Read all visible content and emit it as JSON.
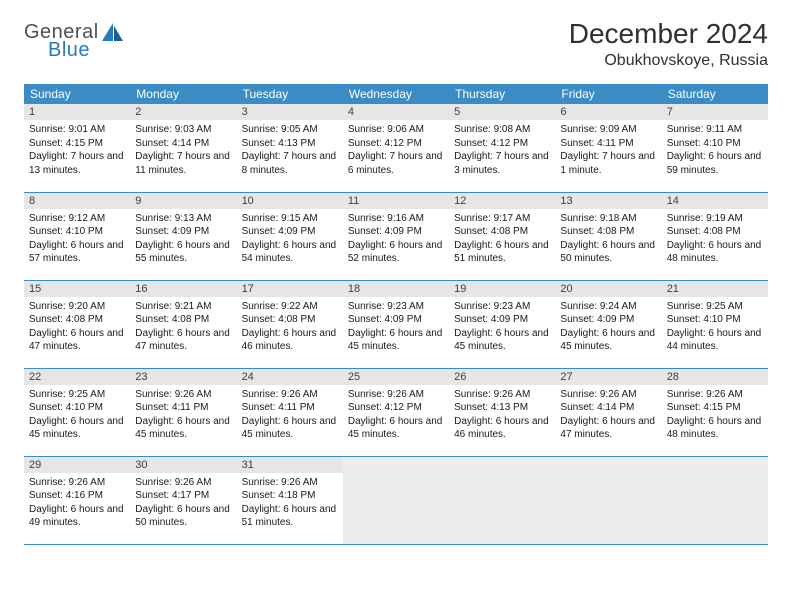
{
  "brand": {
    "word1": "General",
    "word2": "Blue"
  },
  "title": "December 2024",
  "location": "Obukhovskoye, Russia",
  "colors": {
    "header_blue": "#3b8bc4",
    "row_sep": "#3b8bc4",
    "daynum_bg": "#e6e6e6",
    "empty_bg": "#ececec",
    "logo_blue": "#2a7ab8",
    "logo_gray": "#505050"
  },
  "day_headers": [
    "Sunday",
    "Monday",
    "Tuesday",
    "Wednesday",
    "Thursday",
    "Friday",
    "Saturday"
  ],
  "weeks": [
    [
      {
        "n": "1",
        "sunrise": "Sunrise: 9:01 AM",
        "sunset": "Sunset: 4:15 PM",
        "daylight": "Daylight: 7 hours and 13 minutes."
      },
      {
        "n": "2",
        "sunrise": "Sunrise: 9:03 AM",
        "sunset": "Sunset: 4:14 PM",
        "daylight": "Daylight: 7 hours and 11 minutes."
      },
      {
        "n": "3",
        "sunrise": "Sunrise: 9:05 AM",
        "sunset": "Sunset: 4:13 PM",
        "daylight": "Daylight: 7 hours and 8 minutes."
      },
      {
        "n": "4",
        "sunrise": "Sunrise: 9:06 AM",
        "sunset": "Sunset: 4:12 PM",
        "daylight": "Daylight: 7 hours and 6 minutes."
      },
      {
        "n": "5",
        "sunrise": "Sunrise: 9:08 AM",
        "sunset": "Sunset: 4:12 PM",
        "daylight": "Daylight: 7 hours and 3 minutes."
      },
      {
        "n": "6",
        "sunrise": "Sunrise: 9:09 AM",
        "sunset": "Sunset: 4:11 PM",
        "daylight": "Daylight: 7 hours and 1 minute."
      },
      {
        "n": "7",
        "sunrise": "Sunrise: 9:11 AM",
        "sunset": "Sunset: 4:10 PM",
        "daylight": "Daylight: 6 hours and 59 minutes."
      }
    ],
    [
      {
        "n": "8",
        "sunrise": "Sunrise: 9:12 AM",
        "sunset": "Sunset: 4:10 PM",
        "daylight": "Daylight: 6 hours and 57 minutes."
      },
      {
        "n": "9",
        "sunrise": "Sunrise: 9:13 AM",
        "sunset": "Sunset: 4:09 PM",
        "daylight": "Daylight: 6 hours and 55 minutes."
      },
      {
        "n": "10",
        "sunrise": "Sunrise: 9:15 AM",
        "sunset": "Sunset: 4:09 PM",
        "daylight": "Daylight: 6 hours and 54 minutes."
      },
      {
        "n": "11",
        "sunrise": "Sunrise: 9:16 AM",
        "sunset": "Sunset: 4:09 PM",
        "daylight": "Daylight: 6 hours and 52 minutes."
      },
      {
        "n": "12",
        "sunrise": "Sunrise: 9:17 AM",
        "sunset": "Sunset: 4:08 PM",
        "daylight": "Daylight: 6 hours and 51 minutes."
      },
      {
        "n": "13",
        "sunrise": "Sunrise: 9:18 AM",
        "sunset": "Sunset: 4:08 PM",
        "daylight": "Daylight: 6 hours and 50 minutes."
      },
      {
        "n": "14",
        "sunrise": "Sunrise: 9:19 AM",
        "sunset": "Sunset: 4:08 PM",
        "daylight": "Daylight: 6 hours and 48 minutes."
      }
    ],
    [
      {
        "n": "15",
        "sunrise": "Sunrise: 9:20 AM",
        "sunset": "Sunset: 4:08 PM",
        "daylight": "Daylight: 6 hours and 47 minutes."
      },
      {
        "n": "16",
        "sunrise": "Sunrise: 9:21 AM",
        "sunset": "Sunset: 4:08 PM",
        "daylight": "Daylight: 6 hours and 47 minutes."
      },
      {
        "n": "17",
        "sunrise": "Sunrise: 9:22 AM",
        "sunset": "Sunset: 4:08 PM",
        "daylight": "Daylight: 6 hours and 46 minutes."
      },
      {
        "n": "18",
        "sunrise": "Sunrise: 9:23 AM",
        "sunset": "Sunset: 4:09 PM",
        "daylight": "Daylight: 6 hours and 45 minutes."
      },
      {
        "n": "19",
        "sunrise": "Sunrise: 9:23 AM",
        "sunset": "Sunset: 4:09 PM",
        "daylight": "Daylight: 6 hours and 45 minutes."
      },
      {
        "n": "20",
        "sunrise": "Sunrise: 9:24 AM",
        "sunset": "Sunset: 4:09 PM",
        "daylight": "Daylight: 6 hours and 45 minutes."
      },
      {
        "n": "21",
        "sunrise": "Sunrise: 9:25 AM",
        "sunset": "Sunset: 4:10 PM",
        "daylight": "Daylight: 6 hours and 44 minutes."
      }
    ],
    [
      {
        "n": "22",
        "sunrise": "Sunrise: 9:25 AM",
        "sunset": "Sunset: 4:10 PM",
        "daylight": "Daylight: 6 hours and 45 minutes."
      },
      {
        "n": "23",
        "sunrise": "Sunrise: 9:26 AM",
        "sunset": "Sunset: 4:11 PM",
        "daylight": "Daylight: 6 hours and 45 minutes."
      },
      {
        "n": "24",
        "sunrise": "Sunrise: 9:26 AM",
        "sunset": "Sunset: 4:11 PM",
        "daylight": "Daylight: 6 hours and 45 minutes."
      },
      {
        "n": "25",
        "sunrise": "Sunrise: 9:26 AM",
        "sunset": "Sunset: 4:12 PM",
        "daylight": "Daylight: 6 hours and 45 minutes."
      },
      {
        "n": "26",
        "sunrise": "Sunrise: 9:26 AM",
        "sunset": "Sunset: 4:13 PM",
        "daylight": "Daylight: 6 hours and 46 minutes."
      },
      {
        "n": "27",
        "sunrise": "Sunrise: 9:26 AM",
        "sunset": "Sunset: 4:14 PM",
        "daylight": "Daylight: 6 hours and 47 minutes."
      },
      {
        "n": "28",
        "sunrise": "Sunrise: 9:26 AM",
        "sunset": "Sunset: 4:15 PM",
        "daylight": "Daylight: 6 hours and 48 minutes."
      }
    ],
    [
      {
        "n": "29",
        "sunrise": "Sunrise: 9:26 AM",
        "sunset": "Sunset: 4:16 PM",
        "daylight": "Daylight: 6 hours and 49 minutes."
      },
      {
        "n": "30",
        "sunrise": "Sunrise: 9:26 AM",
        "sunset": "Sunset: 4:17 PM",
        "daylight": "Daylight: 6 hours and 50 minutes."
      },
      {
        "n": "31",
        "sunrise": "Sunrise: 9:26 AM",
        "sunset": "Sunset: 4:18 PM",
        "daylight": "Daylight: 6 hours and 51 minutes."
      },
      null,
      null,
      null,
      null
    ]
  ]
}
